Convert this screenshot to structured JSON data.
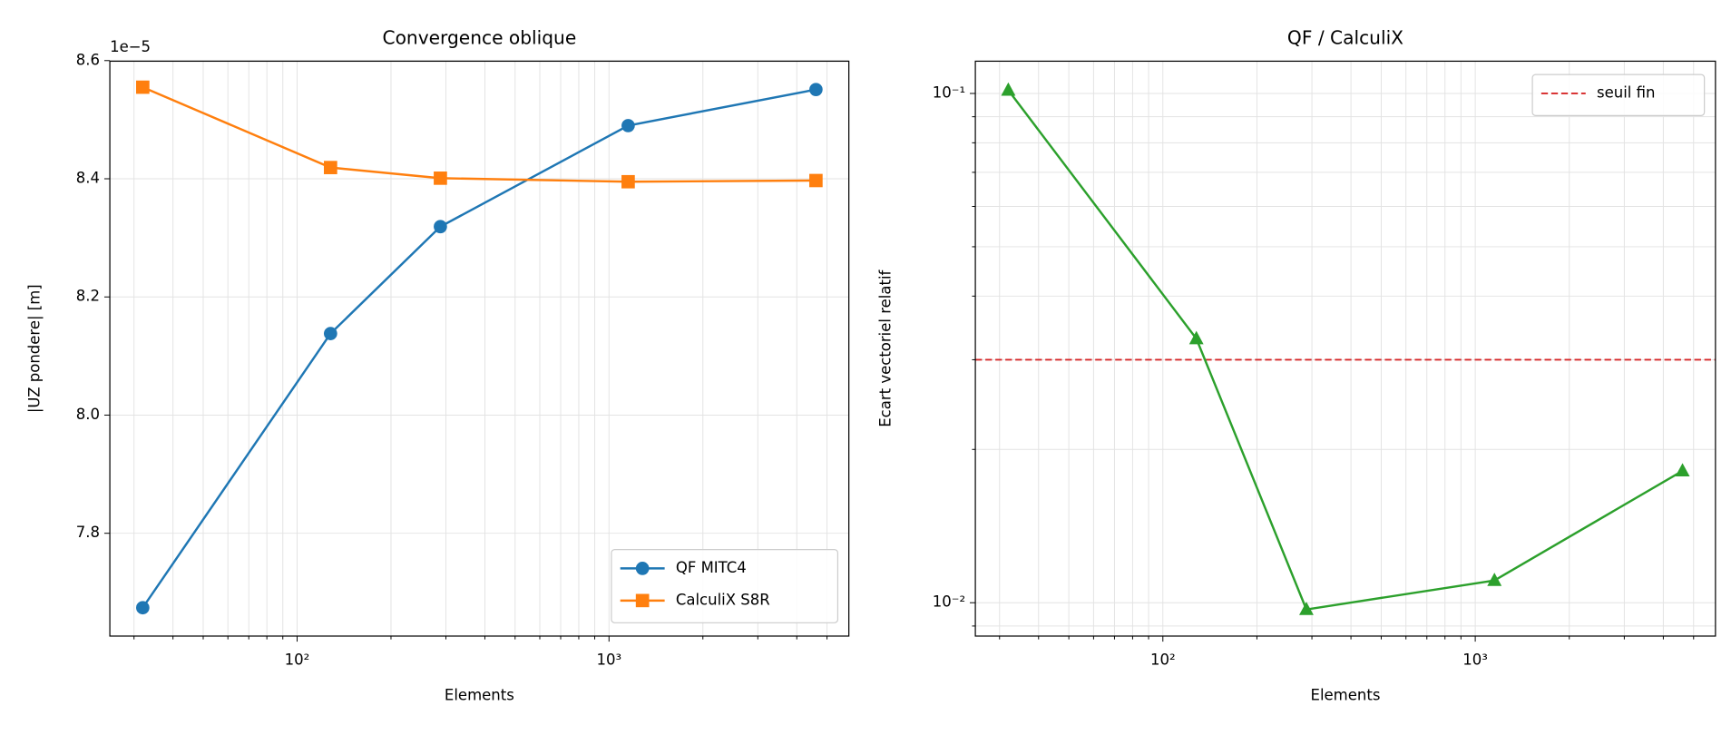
{
  "chart_data": [
    {
      "type": "line",
      "title": "Convergence oblique",
      "xlabel": "Elements",
      "ylabel": "|UZ pondere| [m]",
      "y_offset_text": "1e−5",
      "xscale": "log",
      "x": [
        32,
        128,
        288,
        1152,
        4608
      ],
      "series": [
        {
          "name": "QF MITC4",
          "color": "#1f77b4",
          "marker": "o",
          "values": [
            7.674,
            8.138,
            8.319,
            8.49,
            8.551
          ]
        },
        {
          "name": "CalculiX S8R",
          "color": "#ff7f0e",
          "marker": "s",
          "values": [
            8.555,
            8.419,
            8.401,
            8.395,
            8.397
          ]
        }
      ],
      "xlim": [
        25.1,
        5875
      ],
      "ylim": [
        7.626,
        8.599
      ],
      "xticks": [
        {
          "value": 100,
          "label": "10²"
        },
        {
          "value": 1000,
          "label": "10³"
        }
      ],
      "xminor_ticks": [
        30,
        40,
        50,
        60,
        70,
        80,
        90,
        200,
        300,
        400,
        500,
        600,
        700,
        800,
        900,
        2000,
        3000,
        4000,
        5000
      ],
      "yticks": [
        7.8,
        {
          "value": 8,
          "label": "8.0"
        },
        8.2,
        8.4,
        8.6
      ],
      "grid": true,
      "legend": "lower right"
    },
    {
      "type": "line",
      "title": "QF / CalculiX",
      "xlabel": "Elements",
      "ylabel": "Ecart vectoriel relatif",
      "xscale": "log",
      "yscale": "log",
      "x": [
        32,
        128,
        288,
        1152,
        4608
      ],
      "series": [
        {
          "name": null,
          "color": "#2ca02c",
          "marker": "^",
          "values": [
            0.1015,
            0.033,
            0.0097,
            0.01106,
            0.01815
          ]
        }
      ],
      "hlines": [
        {
          "name": "seuil fin",
          "color": "#d62728",
          "style": "dashed",
          "value": 0.03
        }
      ],
      "xlim": [
        25.1,
        5875
      ],
      "ylim": [
        0.0086,
        0.1157
      ],
      "xticks": [
        {
          "value": 100,
          "label": "10²"
        },
        {
          "value": 1000,
          "label": "10³"
        }
      ],
      "xminor_ticks": [
        30,
        40,
        50,
        60,
        70,
        80,
        90,
        200,
        300,
        400,
        500,
        600,
        700,
        800,
        900,
        2000,
        3000,
        4000,
        5000
      ],
      "yticks": [
        {
          "value": 0.01,
          "label": "10⁻²"
        },
        {
          "value": 0.1,
          "label": "10⁻¹"
        }
      ],
      "yminor_ticks": [
        0.009,
        0.02,
        0.03,
        0.04,
        0.05,
        0.06,
        0.07,
        0.08,
        0.09
      ],
      "grid": true,
      "legend": "upper right"
    }
  ]
}
